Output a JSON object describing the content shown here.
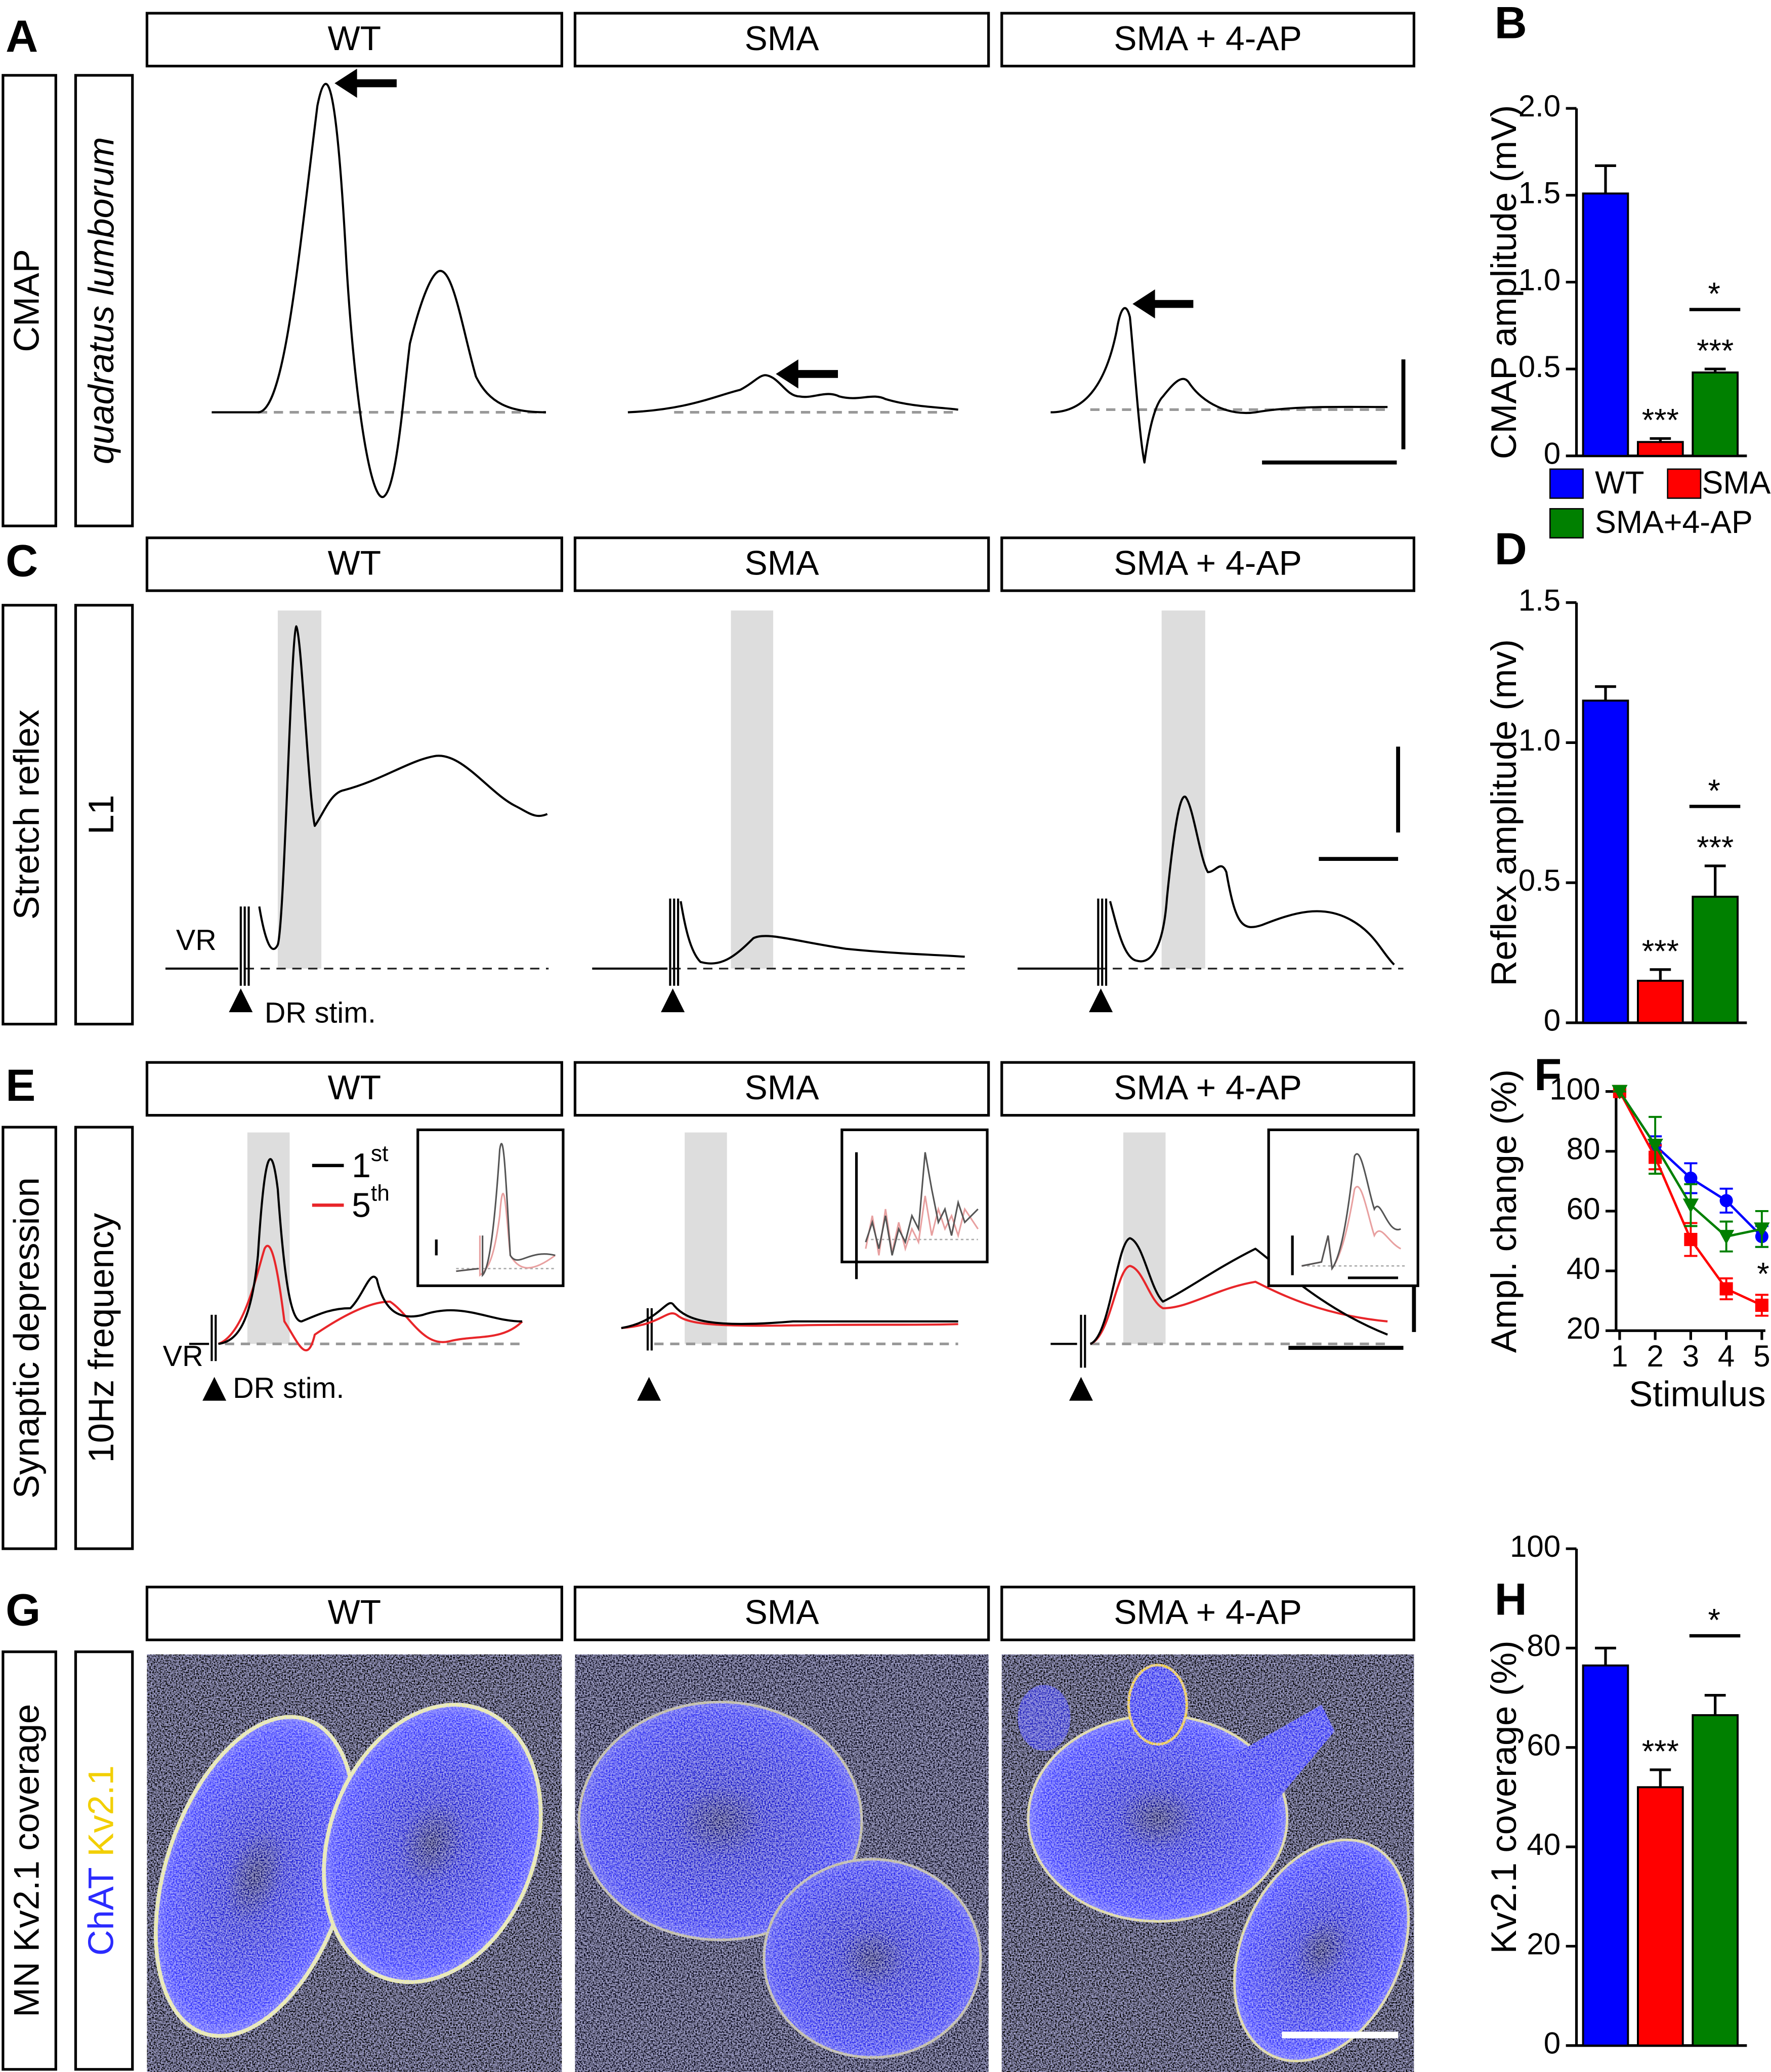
{
  "panels": [
    {
      "label": "A",
      "side_labels": [
        "CMAP",
        "quadratus lumborum"
      ],
      "column_titles": [
        "WT",
        "SMA",
        "SMA + 4-AP"
      ]
    },
    {
      "label": "C",
      "side_labels": [
        "Stretch reflex",
        "L1"
      ],
      "column_titles": [
        "WT",
        "SMA",
        "SMA + 4-AP"
      ],
      "annotations": [
        "VR",
        "DR stim."
      ]
    },
    {
      "label": "E",
      "side_labels": [
        "Synaptic depression",
        "10Hz frequency"
      ],
      "column_titles": [
        "WT",
        "SMA",
        "SMA + 4-AP"
      ],
      "annotations": [
        "VR",
        "DR stim."
      ],
      "legend": [
        {
          "name": "1",
          "sup": "st",
          "color": "#000000"
        },
        {
          "name": "5",
          "sup": "th",
          "color": "#e8262a"
        }
      ]
    },
    {
      "label": "G",
      "side_labels": [
        "MN Kv2.1 coverage"
      ],
      "stain_labels": [
        {
          "text": "ChAT",
          "color": "#2b2bff"
        },
        {
          "text": "Kv2.1",
          "color": "#f2cf00"
        }
      ],
      "column_titles": [
        "WT",
        "SMA",
        "SMA + 4-AP"
      ]
    }
  ],
  "chart_data": [
    {
      "label": "B",
      "type": "bar",
      "ylabel": "CMAP amplitude (mV)",
      "categories": [
        "WT",
        "SMA",
        "SMA+4-AP"
      ],
      "colors": [
        "#0000ff",
        "#ff0000",
        "#008000"
      ],
      "values": [
        1.51,
        0.08,
        0.48
      ],
      "errors": [
        0.16,
        0.02,
        0.02
      ],
      "ylim": [
        0,
        2.0
      ],
      "yticks": [
        0,
        0.5,
        {
          "value": 1.0,
          "label": "1.0"
        },
        1.5,
        {
          "value": 2.0,
          "label": "2.0"
        }
      ],
      "value_annotations": [
        {
          "index": 1,
          "text": "***"
        },
        {
          "index": 2,
          "text": "***"
        }
      ],
      "bracket": {
        "from": 1,
        "to": 2,
        "text": "*"
      }
    },
    {
      "label": "D",
      "type": "bar",
      "ylabel": "Reflex amplitude (mv)",
      "colors": [
        "#0000ff",
        "#ff0000",
        "#008000"
      ],
      "values": [
        1.15,
        0.15,
        0.45
      ],
      "errors": [
        0.05,
        0.04,
        0.11
      ],
      "ylim": [
        0,
        1.5
      ],
      "yticks": [
        0,
        0.5,
        {
          "value": 1.0,
          "label": "1.0"
        },
        1.5
      ],
      "value_annotations": [
        {
          "index": 1,
          "text": "***"
        },
        {
          "index": 2,
          "text": "***"
        }
      ],
      "bracket": {
        "from": 1,
        "to": 2,
        "text": "*"
      }
    },
    {
      "label": "F",
      "type": "line",
      "ylabel": "Ampl. change (%)",
      "xlabel": "Stimulus",
      "x": [
        1,
        2,
        3,
        4,
        5
      ],
      "xlim": [
        0.9,
        5.1
      ],
      "xticks": [
        1,
        2,
        3,
        4,
        5
      ],
      "ylim": [
        20,
        100
      ],
      "yticks": [
        20,
        40,
        60,
        80,
        100
      ],
      "series": [
        {
          "color": "#0000ff",
          "marker": "circle",
          "values": [
            100,
            82,
            71,
            63.5,
            51.5
          ],
          "errors": [
            0,
            3,
            5,
            4,
            3.5
          ]
        },
        {
          "color": "#ff0000",
          "marker": "square",
          "values": [
            100,
            78,
            50.5,
            34,
            28.5
          ],
          "errors": [
            0,
            4,
            5.5,
            3.5,
            3.5
          ]
        },
        {
          "color": "#008000",
          "marker": "triangle-down",
          "values": [
            100,
            82,
            62,
            51.5,
            54
          ],
          "errors": [
            0,
            9.5,
            7,
            5,
            6
          ]
        }
      ],
      "point_annotations": [
        {
          "series": 1,
          "index": 4,
          "text": "*"
        }
      ]
    },
    {
      "label": "H",
      "type": "bar",
      "ylabel": "Kv2.1 coverage (%)",
      "colors": [
        "#0000ff",
        "#ff0000",
        "#008000"
      ],
      "values": [
        76.5,
        52,
        66.5
      ],
      "errors": [
        3.5,
        3.5,
        4
      ],
      "ylim": [
        0,
        100
      ],
      "yticks": [
        0,
        20,
        40,
        60,
        80,
        100
      ],
      "value_annotations": [
        {
          "index": 1,
          "text": "***"
        }
      ],
      "bracket": {
        "from": 1,
        "to": 2,
        "text": "*"
      }
    }
  ]
}
